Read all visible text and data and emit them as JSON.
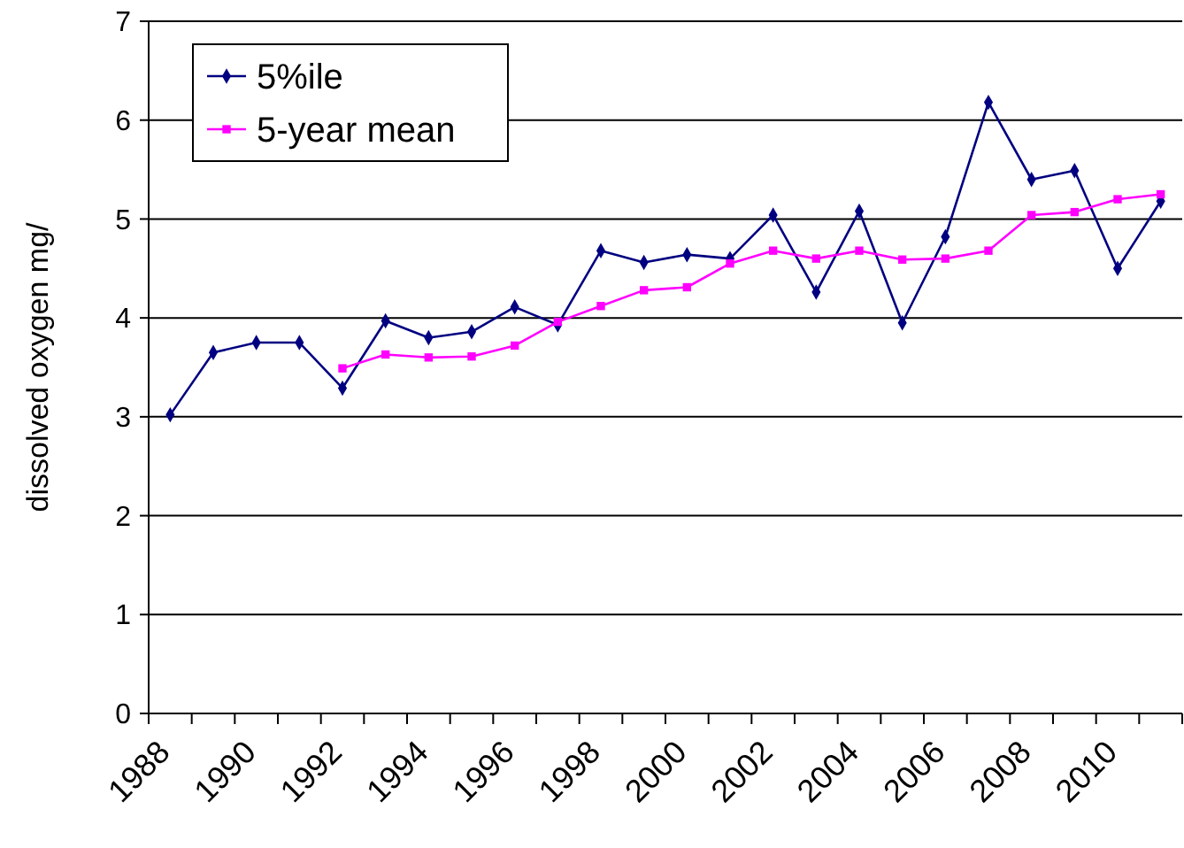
{
  "chart_data": {
    "type": "line",
    "ylabel": "dissolved oxygen mg/",
    "categories": [
      "1988",
      null,
      "1990",
      null,
      "1992",
      null,
      "1994",
      null,
      "1996",
      null,
      "1998",
      null,
      "2000",
      null,
      "2002",
      null,
      "2004",
      null,
      "2006",
      null,
      "2008",
      null,
      "2010",
      null
    ],
    "series": [
      {
        "name": "5%ile",
        "color": "#000080",
        "marker": "diamond",
        "values": [
          3.02,
          3.65,
          3.75,
          3.75,
          3.29,
          3.97,
          3.8,
          3.86,
          4.11,
          3.93,
          4.68,
          4.56,
          4.64,
          4.6,
          5.04,
          4.26,
          5.08,
          3.95,
          4.82,
          6.18,
          5.4,
          5.49,
          4.5,
          5.18
        ]
      },
      {
        "name": "5-year mean",
        "color": "#ff00ff",
        "marker": "square",
        "values": [
          null,
          null,
          null,
          null,
          3.49,
          3.63,
          3.6,
          3.61,
          3.72,
          3.96,
          4.12,
          4.28,
          4.31,
          4.55,
          4.68,
          4.6,
          4.68,
          4.59,
          4.6,
          4.68,
          5.04,
          5.07,
          5.2,
          5.25
        ]
      }
    ],
    "ylim": [
      0,
      7
    ],
    "yticks": [
      0,
      1,
      2,
      3,
      4,
      5,
      6,
      7
    ],
    "grid": "y",
    "legend": "top left",
    "line_style": "solid"
  }
}
